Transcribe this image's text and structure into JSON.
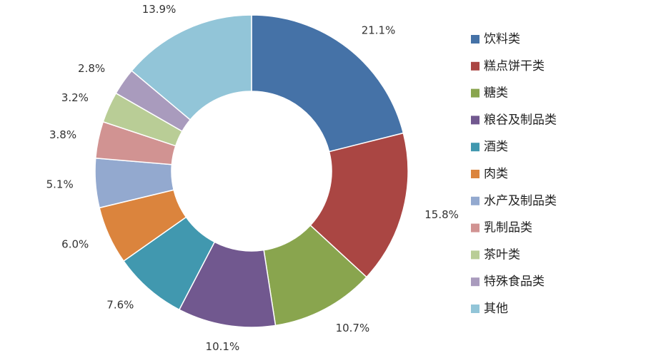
{
  "chart_data": {
    "type": "pie",
    "variant": "donut",
    "legend_position": "right",
    "categories": [
      "饮料类",
      "糕点饼干类",
      "糖类",
      "粮谷及制品类",
      "酒类",
      "肉类",
      "水产及制品类",
      "乳制品类",
      "茶叶类",
      "特殊食品类",
      "其他"
    ],
    "values": [
      21.1,
      15.8,
      10.7,
      10.1,
      7.6,
      6.0,
      5.1,
      3.8,
      3.2,
      2.8,
      13.9
    ],
    "labels": [
      "21.1%",
      "15.8%",
      "10.7%",
      "10.1%",
      "7.6%",
      "6.0%",
      "5.1%",
      "3.8%",
      "3.2%",
      "2.8%",
      "13.9%"
    ],
    "colors": [
      "#4572A7",
      "#AA4643",
      "#89A54E",
      "#71588F",
      "#4198AF",
      "#DB843D",
      "#93A9CF",
      "#D19392",
      "#B9CD96",
      "#A99BBD",
      "#92C5D8"
    ]
  }
}
